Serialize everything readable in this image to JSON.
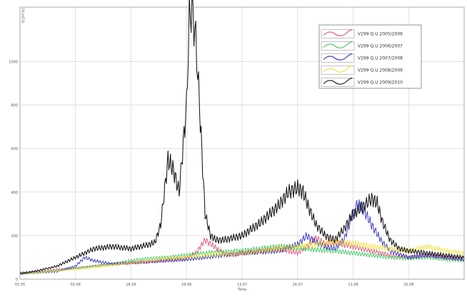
{
  "chart_data": {
    "type": "line",
    "title": "",
    "xlabel": "Time",
    "ylabel": "Q [m³/s]",
    "xlim": [
      0,
      24
    ],
    "ylim": [
      0,
      1250
    ],
    "grid": true,
    "legend_position": "top-right",
    "x_ticks": [
      {
        "value": 0,
        "label": "01.05"
      },
      {
        "value": 3,
        "label": "02.06"
      },
      {
        "value": 6,
        "label": "16.06"
      },
      {
        "value": 9,
        "label": "29.06"
      },
      {
        "value": 12,
        "label": "13.07"
      },
      {
        "value": 15,
        "label": "26.07"
      },
      {
        "value": 18,
        "label": "11.08"
      },
      {
        "value": 21,
        "label": "25.08"
      }
    ],
    "y_ticks": [
      {
        "value": 0,
        "label": "0"
      },
      {
        "value": 200,
        "label": "200"
      },
      {
        "value": 400,
        "label": "400"
      },
      {
        "value": 600,
        "label": "600"
      },
      {
        "value": 800,
        "label": "800"
      },
      {
        "value": 1000,
        "label": "1000"
      }
    ],
    "series": [
      {
        "name": "V299 Q.U 2005/2006",
        "color": "#e0507a",
        "x": [
          0,
          1,
          2,
          3,
          4,
          5,
          6,
          7,
          8,
          9,
          9.5,
          10,
          10.5,
          11,
          11.5,
          12,
          13,
          14,
          15,
          15.5,
          16,
          16.5,
          17,
          17.5,
          18,
          18.5,
          19,
          19.5,
          20,
          21,
          22,
          23,
          24
        ],
        "y": [
          30,
          35,
          45,
          50,
          60,
          70,
          75,
          80,
          90,
          95,
          120,
          180,
          150,
          120,
          110,
          120,
          130,
          140,
          120,
          150,
          190,
          160,
          170,
          160,
          150,
          140,
          130,
          120,
          110,
          100,
          110,
          100,
          95
        ]
      },
      {
        "name": "V299 Q.U 2006/2007",
        "color": "#3cc860",
        "x": [
          0,
          1,
          2,
          3,
          4,
          5,
          6,
          7,
          8,
          9,
          10,
          11,
          12,
          13,
          14,
          15,
          16,
          17,
          18,
          19,
          20,
          21,
          22,
          23,
          24
        ],
        "y": [
          28,
          32,
          40,
          50,
          60,
          70,
          85,
          95,
          100,
          110,
          120,
          125,
          130,
          140,
          150,
          145,
          135,
          130,
          120,
          110,
          100,
          95,
          100,
          90,
          85
        ]
      },
      {
        "name": "V299 Q.U 2007/2008",
        "color": "#3030c8",
        "x": [
          0,
          1,
          2,
          3,
          3.5,
          4,
          5,
          6,
          7,
          8,
          9,
          10,
          11,
          12,
          13,
          14,
          15,
          15.5,
          16,
          16.5,
          17,
          17.5,
          18,
          18.2,
          18.5,
          19,
          19.5,
          20,
          21,
          22,
          23,
          24
        ],
        "y": [
          25,
          30,
          35,
          60,
          100,
          85,
          70,
          75,
          80,
          85,
          90,
          100,
          110,
          120,
          125,
          130,
          160,
          200,
          170,
          150,
          140,
          180,
          300,
          340,
          330,
          250,
          180,
          130,
          100,
          110,
          100,
          90
        ]
      },
      {
        "name": "V299 Q.U 2008/2009",
        "color": "#f0e040",
        "x": [
          0,
          1,
          2,
          3,
          4,
          5,
          6,
          7,
          8,
          9,
          10,
          11,
          12,
          13,
          14,
          15,
          16,
          17,
          18,
          19,
          20,
          21,
          22,
          23,
          24
        ],
        "y": [
          25,
          30,
          38,
          45,
          55,
          65,
          75,
          85,
          95,
          100,
          110,
          115,
          120,
          130,
          140,
          150,
          160,
          170,
          165,
          150,
          140,
          130,
          150,
          130,
          120
        ]
      },
      {
        "name": "V299 Q.U 2009/2010",
        "color": "#151515",
        "x": [
          0,
          1,
          2,
          3,
          4,
          5,
          6,
          6.5,
          7,
          7.3,
          7.6,
          8,
          8.3,
          8.6,
          9,
          9.15,
          9.3,
          9.5,
          9.7,
          10,
          10.3,
          10.6,
          11,
          12,
          13,
          14,
          14.5,
          15,
          15.3,
          15.6,
          16,
          16.5,
          17,
          17.5,
          18,
          18.5,
          19,
          19.3,
          19.6,
          20,
          20.5,
          21,
          22,
          23,
          24
        ],
        "y": [
          25,
          40,
          60,
          100,
          140,
          150,
          140,
          150,
          160,
          170,
          250,
          550,
          500,
          400,
          800,
          1200,
          1250,
          1100,
          800,
          300,
          200,
          180,
          180,
          200,
          260,
          340,
          400,
          420,
          400,
          330,
          250,
          200,
          180,
          230,
          300,
          330,
          370,
          350,
          260,
          180,
          140,
          130,
          120,
          110,
          100
        ]
      }
    ]
  }
}
